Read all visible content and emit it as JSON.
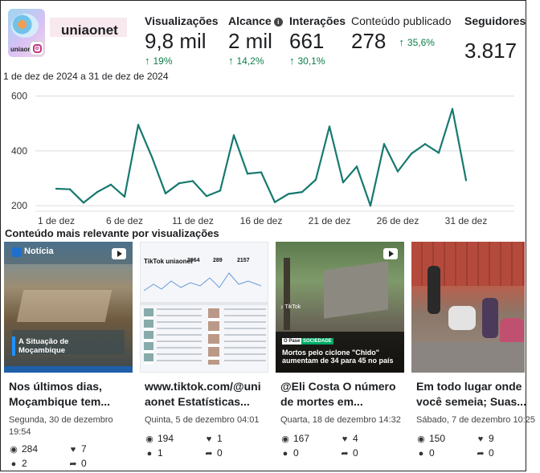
{
  "account": {
    "name": "uniaonet",
    "avatar_text": "uniaonet",
    "platform_icon": "instagram-icon"
  },
  "metrics": [
    {
      "label": "Visualizações",
      "value": "9,8 mil",
      "delta": "19%",
      "info": false
    },
    {
      "label": "Alcance",
      "value": "2 mil",
      "delta": "14,2%",
      "info": true
    },
    {
      "label": "Interações",
      "value": "661",
      "delta": "30,1%",
      "info": false
    },
    {
      "label": "Conteúdo publicado",
      "value": "278",
      "delta": "35,6%",
      "info": false
    },
    {
      "label": "Seguidores",
      "value": "3.817",
      "delta": "",
      "info": false
    }
  ],
  "date_range": "1 de dez de 2024 a 31 de dez de 2024",
  "chart_data": {
    "type": "line",
    "title": "",
    "xlabel": "",
    "ylabel": "",
    "x": [
      1,
      2,
      3,
      4,
      5,
      6,
      7,
      8,
      9,
      10,
      11,
      12,
      13,
      14,
      15,
      16,
      17,
      18,
      19,
      20,
      21,
      22,
      23,
      24,
      25,
      26,
      27,
      28,
      29,
      30,
      31
    ],
    "values": [
      262,
      260,
      211,
      250,
      277,
      233,
      495,
      378,
      245,
      282,
      290,
      235,
      255,
      457,
      317,
      322,
      213,
      243,
      250,
      295,
      489,
      285,
      343,
      200,
      425,
      325,
      390,
      425,
      393,
      553,
      293
    ],
    "x_tick_labels": [
      "1 de dez",
      "6 de dez",
      "11 de dez",
      "16 de dez",
      "21 de dez",
      "26 de dez",
      "31 de dez"
    ],
    "x_ticks": [
      1,
      6,
      11,
      16,
      21,
      26,
      31
    ],
    "y_ticks": [
      200,
      400,
      600
    ],
    "ylim": [
      180,
      640
    ],
    "grid": "horizontal",
    "line_color": "#17796f"
  },
  "section_title": "Conteúdo mais relevante por visualizações",
  "posts": [
    {
      "caption_line1": "Nos últimos dias,",
      "caption_line2": "Moçambique tem...",
      "date_line1": "Segunda, 30 de dezembro",
      "date_line2": "19:54",
      "views": "284",
      "likes": "7",
      "comments": "2",
      "shares": "0",
      "thumb_badge": "Notícia",
      "thumb_title": "A Situação de Moçambique"
    },
    {
      "caption_line1": "www.tiktok.com/@uni",
      "caption_line2": "aonet Estatísticas...",
      "date_line1": "Quinta, 5 de dezembro 04:01",
      "date_line2": "",
      "views": "194",
      "likes": "1",
      "comments": "1",
      "shares": "0",
      "thumb_handle": "TikTok uniaonet",
      "thumb_stats": [
        "3964",
        "289",
        "2157"
      ]
    },
    {
      "caption_line1": "@Eli Costa O número",
      "caption_line2": "de mortes em...",
      "date_line1": "Quarta, 18 de dezembro 14:32",
      "date_line2": "",
      "views": "167",
      "likes": "4",
      "comments": "0",
      "shares": "0",
      "thumb_tags": [
        "O Pase",
        "SOCIEDADE"
      ],
      "thumb_title": "Mortos pelo ciclone \"Chido\" aumentam de 34 para 45 no país"
    },
    {
      "caption_line1": "Em todo lugar onde",
      "caption_line2": "você semeia; Suas...",
      "date_line1": "Sábado, 7 de dezembro 10:25",
      "date_line2": "",
      "views": "150",
      "likes": "9",
      "comments": "0",
      "shares": "0"
    }
  ]
}
